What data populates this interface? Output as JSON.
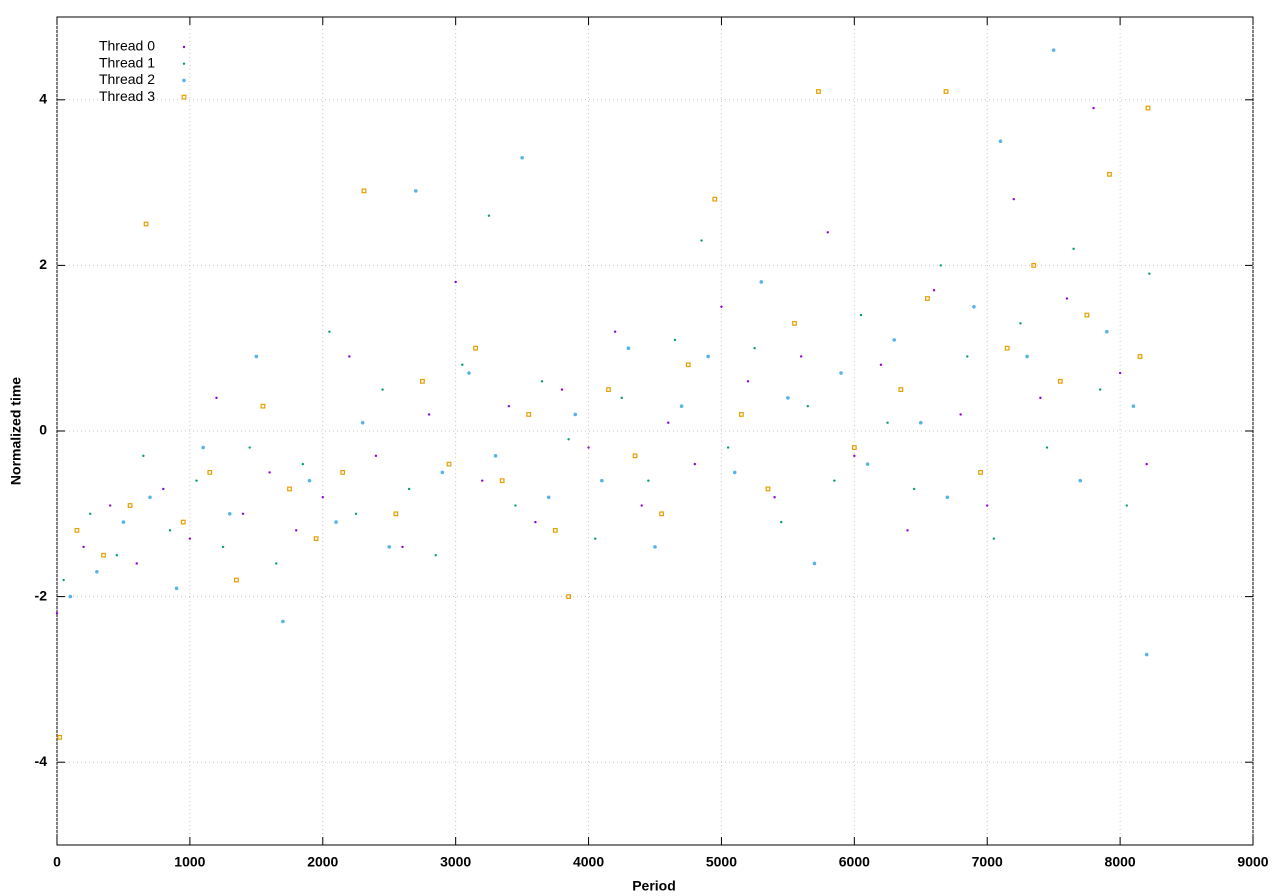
{
  "chart_data": {
    "type": "scatter",
    "x_label": "Period",
    "y_label": "Normalized time",
    "xlim": [
      0,
      9000
    ],
    "xticks": [
      0,
      1000,
      2000,
      3000,
      4000,
      5000,
      6000,
      7000,
      8000,
      9000
    ],
    "ylim": [
      -5,
      5
    ],
    "yticks": [
      -4,
      -2,
      0,
      2,
      4
    ],
    "grid": true,
    "legend": "top-left",
    "series": [
      {
        "name": "Thread 0",
        "color": "#9400d3",
        "marker": "dot",
        "x": [
          0,
          200,
          400,
          600,
          800,
          1000,
          1200,
          1400,
          1600,
          1800,
          2000,
          2200,
          2400,
          2600,
          2800,
          3000,
          3200,
          3400,
          3600,
          3800,
          4000,
          4200,
          4400,
          4600,
          4800,
          5000,
          5200,
          5400,
          5600,
          5800,
          6000,
          6200,
          6400,
          6600,
          6800,
          7000,
          7200,
          7400,
          7600,
          7800,
          8000,
          8200
        ],
        "values": [
          -2.2,
          -1.4,
          -0.9,
          -1.6,
          -0.7,
          -1.3,
          0.4,
          -1.0,
          -0.5,
          -1.2,
          -0.8,
          0.9,
          -0.3,
          -1.4,
          0.2,
          1.8,
          -0.6,
          0.3,
          -1.1,
          0.5,
          -0.2,
          1.2,
          -0.9,
          0.1,
          -0.4,
          1.5,
          0.6,
          -0.8,
          0.9,
          2.4,
          -0.3,
          0.8,
          -1.2,
          1.7,
          0.2,
          -0.9,
          2.8,
          0.4,
          1.6,
          3.9,
          0.7,
          -0.4
        ]
      },
      {
        "name": "Thread 1",
        "color": "#009e73",
        "marker": "dot",
        "x": [
          50,
          250,
          450,
          650,
          850,
          1050,
          1250,
          1450,
          1650,
          1850,
          2050,
          2250,
          2450,
          2650,
          2850,
          3050,
          3250,
          3450,
          3650,
          3850,
          4050,
          4250,
          4450,
          4650,
          4850,
          5050,
          5250,
          5450,
          5650,
          5850,
          6050,
          6250,
          6450,
          6650,
          6850,
          7050,
          7250,
          7450,
          7650,
          7850,
          8050,
          8220
        ],
        "values": [
          -1.8,
          -1.0,
          -1.5,
          -0.3,
          -1.2,
          -0.6,
          -1.4,
          -0.2,
          -1.6,
          -0.4,
          1.2,
          -1.0,
          0.5,
          -0.7,
          -1.5,
          0.8,
          2.6,
          -0.9,
          0.6,
          -0.1,
          -1.3,
          0.4,
          -0.6,
          1.1,
          2.3,
          -0.2,
          1.0,
          -1.1,
          0.3,
          -0.6,
          1.4,
          0.1,
          -0.7,
          2.0,
          0.9,
          -1.3,
          1.3,
          -0.2,
          2.2,
          0.5,
          -0.9,
          1.9
        ]
      },
      {
        "name": "Thread 2",
        "color": "#56b4e9",
        "marker": "circle",
        "x": [
          100,
          300,
          500,
          700,
          900,
          1100,
          1300,
          1500,
          1700,
          1900,
          2100,
          2300,
          2500,
          2700,
          2900,
          3100,
          3300,
          3500,
          3700,
          3900,
          4100,
          4300,
          4500,
          4700,
          4900,
          5100,
          5300,
          5500,
          5700,
          5900,
          6100,
          6300,
          6500,
          6700,
          6900,
          7100,
          7300,
          7500,
          7700,
          7900,
          8100,
          8200
        ],
        "values": [
          -2.0,
          -1.7,
          -1.1,
          -0.8,
          -1.9,
          -0.2,
          -1.0,
          0.9,
          -2.3,
          -0.6,
          -1.1,
          0.1,
          -1.4,
          2.9,
          -0.5,
          0.7,
          -0.3,
          3.3,
          -0.8,
          0.2,
          -0.6,
          1.0,
          -1.4,
          0.3,
          0.9,
          -0.5,
          1.8,
          0.4,
          -1.6,
          0.7,
          -0.4,
          1.1,
          0.1,
          -0.8,
          1.5,
          3.5,
          0.9,
          4.6,
          -0.6,
          1.2,
          0.3,
          -2.7
        ]
      },
      {
        "name": "Thread 3",
        "color": "#e69f00",
        "marker": "square",
        "x": [
          20,
          150,
          350,
          550,
          670,
          950,
          1150,
          1350,
          1550,
          1750,
          1950,
          2150,
          2310,
          2550,
          2750,
          2950,
          3150,
          3350,
          3550,
          3750,
          3850,
          4150,
          4350,
          4550,
          4750,
          4950,
          5150,
          5350,
          5550,
          5730,
          6000,
          6350,
          6550,
          6690,
          6950,
          7150,
          7350,
          7550,
          7750,
          7920,
          8150,
          8210
        ],
        "values": [
          -3.7,
          -1.2,
          -1.5,
          -0.9,
          2.5,
          -1.1,
          -0.5,
          -1.8,
          0.3,
          -0.7,
          -1.3,
          -0.5,
          2.9,
          -1.0,
          0.6,
          -0.4,
          1.0,
          -0.6,
          0.2,
          -1.2,
          -2.0,
          0.5,
          -0.3,
          -1.0,
          0.8,
          2.8,
          0.2,
          -0.7,
          1.3,
          4.1,
          -0.2,
          0.5,
          1.6,
          4.1,
          -0.5,
          1.0,
          2.0,
          0.6,
          1.4,
          3.1,
          0.9,
          3.9
        ]
      }
    ]
  }
}
